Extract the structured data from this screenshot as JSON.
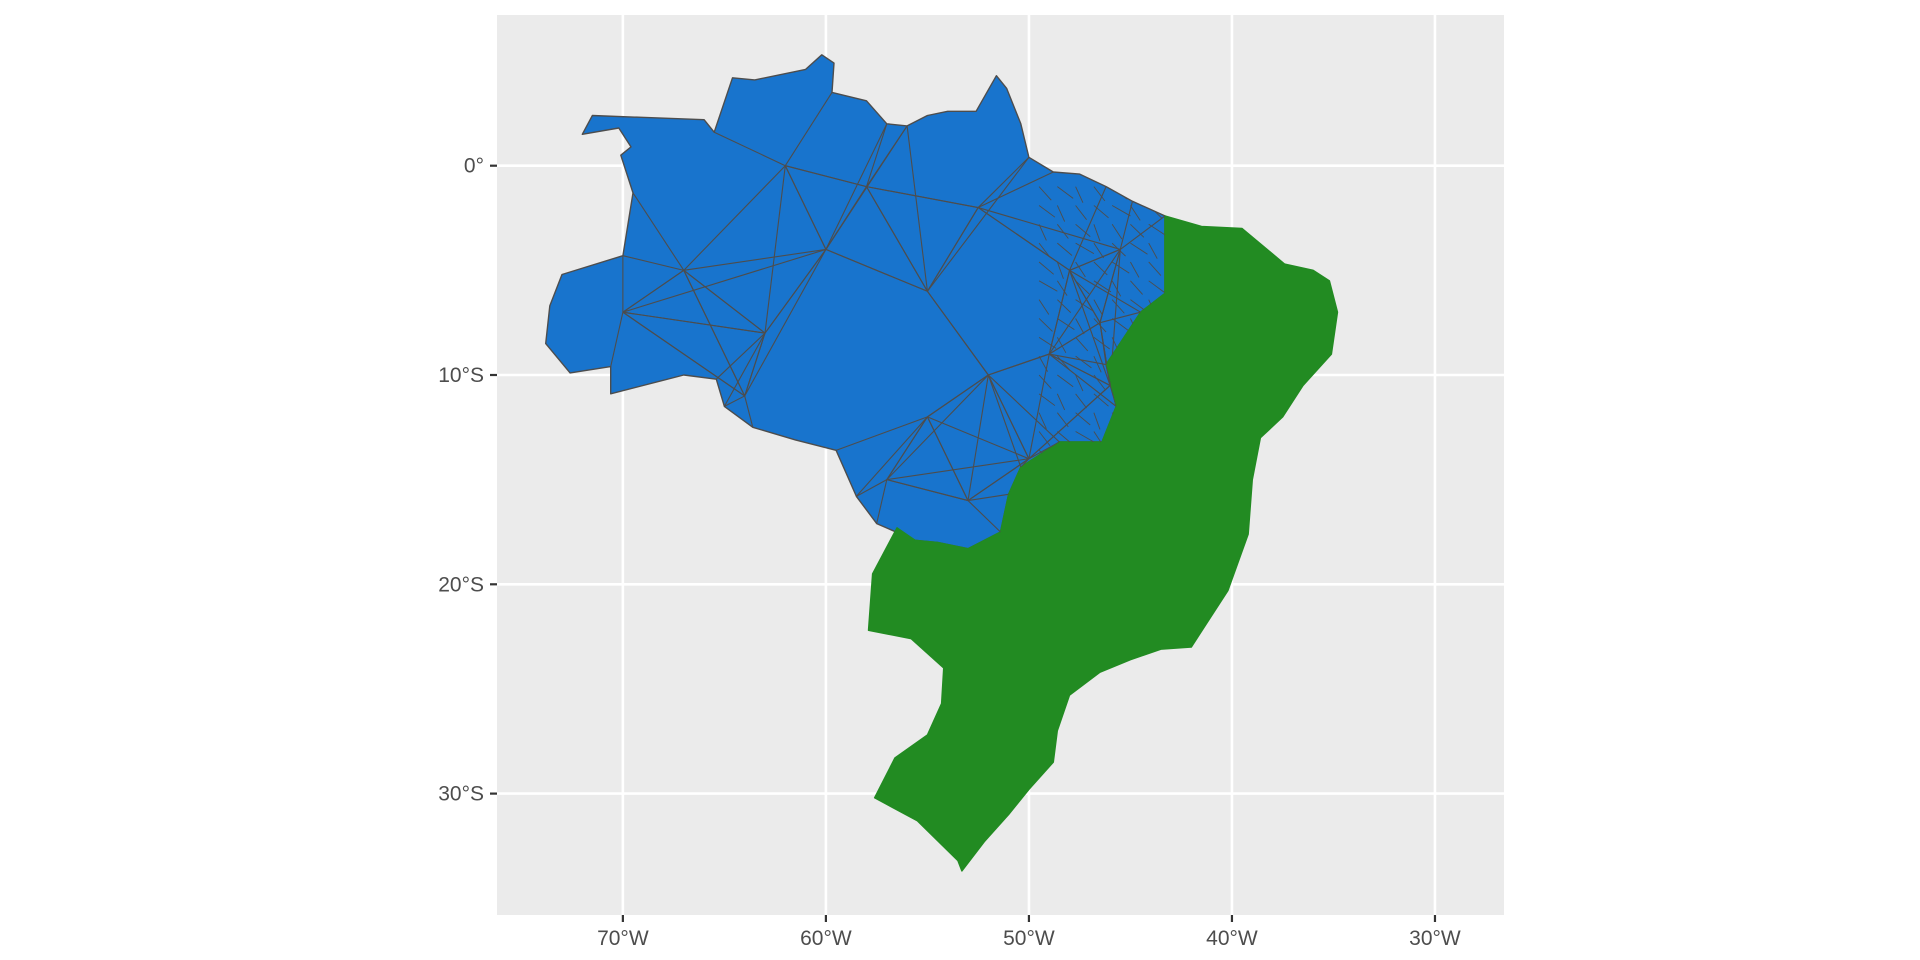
{
  "map": {
    "type": "choropleth",
    "subject": "Brazil municipalities",
    "x_ticks": [
      {
        "lon": -70,
        "label": "70°W"
      },
      {
        "lon": -60,
        "label": "60°W"
      },
      {
        "lon": -50,
        "label": "50°W"
      },
      {
        "lon": -40,
        "label": "40°W"
      },
      {
        "lon": -30,
        "label": "30°W"
      }
    ],
    "y_ticks": [
      {
        "lat": 0,
        "label": "0°"
      },
      {
        "lat": -10,
        "label": "10°S"
      },
      {
        "lat": -20,
        "label": "20°S"
      },
      {
        "lat": -30,
        "label": "30°S"
      }
    ],
    "lon_range": [
      -76.2,
      -26.6
    ],
    "lat_range": [
      -35.8,
      7.2
    ],
    "regions": [
      {
        "name": "north-center-west",
        "color": "#1874CD",
        "border_color": "#4d4d4d",
        "outline": [
          [
            -72,
            1.5
          ],
          [
            -71.5,
            2.4
          ],
          [
            -66,
            2.2
          ],
          [
            -65.5,
            1.6
          ],
          [
            -64.6,
            4.2
          ],
          [
            -63.5,
            4.1
          ],
          [
            -61,
            4.6
          ],
          [
            -60.2,
            5.3
          ],
          [
            -59.6,
            4.9
          ],
          [
            -59.7,
            3.5
          ],
          [
            -58,
            3.1
          ],
          [
            -57,
            2
          ],
          [
            -56,
            1.9
          ],
          [
            -55,
            2.4
          ],
          [
            -54,
            2.6
          ],
          [
            -52.6,
            2.6
          ],
          [
            -51.6,
            4.3
          ],
          [
            -51.1,
            3.7
          ],
          [
            -50.4,
            2
          ],
          [
            -50,
            0.4
          ],
          [
            -48.8,
            -0.3
          ],
          [
            -47.5,
            -0.4
          ],
          [
            -46.2,
            -1
          ],
          [
            -44.9,
            -1.7
          ],
          [
            -43.3,
            -2.4
          ],
          [
            -43.3,
            -6.1
          ],
          [
            -44.5,
            -7
          ],
          [
            -46.2,
            -9.5
          ],
          [
            -45.7,
            -11.5
          ],
          [
            -46.4,
            -13.2
          ],
          [
            -48.5,
            -13.2
          ],
          [
            -50.4,
            -14.4
          ],
          [
            -51,
            -15.7
          ],
          [
            -51.4,
            -17.5
          ],
          [
            -53,
            -18.3
          ],
          [
            -54.5,
            -18
          ],
          [
            -55.6,
            -17.9
          ],
          [
            -57.5,
            -17.1
          ],
          [
            -58.5,
            -15.8
          ],
          [
            -59.5,
            -13.6
          ],
          [
            -61.5,
            -13.1
          ],
          [
            -63.6,
            -12.5
          ],
          [
            -65,
            -11.5
          ],
          [
            -65.4,
            -10.2
          ],
          [
            -67,
            -10
          ],
          [
            -70.6,
            -10.9
          ],
          [
            -70.6,
            -9.6
          ],
          [
            -72.6,
            -9.9
          ],
          [
            -73.8,
            -8.5
          ],
          [
            -73.6,
            -6.7
          ],
          [
            -73,
            -5.2
          ],
          [
            -70,
            -4.3
          ],
          [
            -69.5,
            -1.3
          ],
          [
            -70.1,
            0.5
          ],
          [
            -69.6,
            0.9
          ],
          [
            -70.2,
            1.8
          ]
        ],
        "interior_points": [
          [
            -60,
            -4
          ],
          [
            -63,
            -8
          ],
          [
            -55,
            -6
          ],
          [
            -67,
            -5
          ],
          [
            -52,
            -10
          ],
          [
            -48,
            -5
          ],
          [
            -50,
            -14
          ],
          [
            -57,
            -15
          ],
          [
            -45.5,
            -4
          ],
          [
            -46.5,
            -7.5
          ],
          [
            -53,
            -16
          ],
          [
            -64,
            -11
          ],
          [
            -58,
            -1
          ],
          [
            -62,
            0
          ],
          [
            -49,
            -9
          ],
          [
            -55,
            -12
          ],
          [
            -70,
            -7
          ],
          [
            -46,
            -10.5
          ],
          [
            -52.5,
            -2
          ]
        ]
      },
      {
        "name": "northeast-southeast-south",
        "color": "#228B22",
        "border_color": "#228B22",
        "outline": [
          [
            -43.3,
            -2.4
          ],
          [
            -41.5,
            -2.9
          ],
          [
            -39.5,
            -3
          ],
          [
            -37.4,
            -4.7
          ],
          [
            -36,
            -5
          ],
          [
            -35.2,
            -5.5
          ],
          [
            -34.8,
            -7
          ],
          [
            -35.1,
            -9
          ],
          [
            -36.5,
            -10.5
          ],
          [
            -37.5,
            -12
          ],
          [
            -38.6,
            -13
          ],
          [
            -39,
            -15
          ],
          [
            -39.2,
            -17.6
          ],
          [
            -40.2,
            -20.3
          ],
          [
            -41,
            -21.5
          ],
          [
            -42,
            -23
          ],
          [
            -43.5,
            -23.1
          ],
          [
            -45,
            -23.6
          ],
          [
            -46.5,
            -24.2
          ],
          [
            -48,
            -25.3
          ],
          [
            -48.6,
            -27
          ],
          [
            -48.8,
            -28.5
          ],
          [
            -50,
            -29.8
          ],
          [
            -51,
            -31
          ],
          [
            -52.2,
            -32.3
          ],
          [
            -53.3,
            -33.7
          ],
          [
            -53.5,
            -33.2
          ],
          [
            -55.5,
            -31.3
          ],
          [
            -57.6,
            -30.2
          ],
          [
            -56.6,
            -28.3
          ],
          [
            -55,
            -27.2
          ],
          [
            -54.3,
            -25.7
          ],
          [
            -54.2,
            -24
          ],
          [
            -55.8,
            -22.6
          ],
          [
            -57.9,
            -22.2
          ],
          [
            -57.7,
            -19.5
          ],
          [
            -56.5,
            -17.3
          ],
          [
            -55.6,
            -17.9
          ],
          [
            -54.5,
            -18
          ],
          [
            -53,
            -18.3
          ],
          [
            -51.4,
            -17.5
          ],
          [
            -51,
            -15.7
          ],
          [
            -50.4,
            -14.4
          ],
          [
            -48.5,
            -13.2
          ],
          [
            -46.4,
            -13.2
          ],
          [
            -45.7,
            -11.5
          ],
          [
            -46.2,
            -9.5
          ],
          [
            -44.5,
            -7
          ],
          [
            -43.3,
            -6.1
          ]
        ]
      }
    ]
  }
}
